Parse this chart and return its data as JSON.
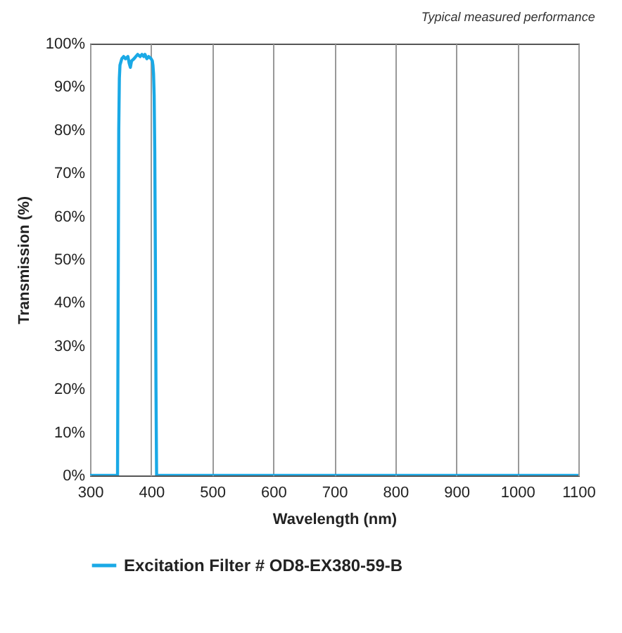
{
  "chart_data": {
    "type": "line",
    "annotations": [
      "Typical measured performance"
    ],
    "xlabel": "Wavelength (nm)",
    "ylabel": "Transmission (%)",
    "series": [
      {
        "name": "Excitation Filter # OD8-EX380-59-B",
        "color": "#1aa9e6",
        "x": [
          300,
          345,
          346,
          347,
          348,
          349,
          352,
          355,
          358,
          362,
          364,
          366,
          368,
          372,
          375,
          378,
          382,
          385,
          388,
          390,
          393,
          396,
          400,
          402,
          403,
          404,
          405,
          406,
          407,
          408,
          409,
          1100
        ],
        "values": [
          0,
          0,
          40,
          80,
          92,
          95,
          96.5,
          97,
          96.5,
          97,
          95.5,
          94.5,
          96,
          96.5,
          97,
          97.5,
          97,
          97.5,
          97,
          97.5,
          96.5,
          97,
          96.5,
          96,
          95,
          93,
          88,
          75,
          50,
          20,
          0,
          0
        ]
      }
    ],
    "xlim": [
      300,
      1100
    ],
    "xticks": [
      300,
      400,
      500,
      600,
      700,
      800,
      900,
      1000,
      1100
    ],
    "ylim": [
      0,
      100
    ],
    "yticks": [
      {
        "value": 0,
        "label": "0%"
      },
      {
        "value": 10,
        "label": "10%"
      },
      {
        "value": 20,
        "label": "20%"
      },
      {
        "value": 30,
        "label": "30%"
      },
      {
        "value": 40,
        "label": "40%"
      },
      {
        "value": 50,
        "label": "50%"
      },
      {
        "value": 60,
        "label": "60%"
      },
      {
        "value": 70,
        "label": "70%"
      },
      {
        "value": 80,
        "label": "80%"
      },
      {
        "value": 90,
        "label": "90%"
      },
      {
        "value": 100,
        "label": "100%"
      }
    ],
    "grid": "x",
    "legend": "bottom",
    "line_style": "solid"
  }
}
